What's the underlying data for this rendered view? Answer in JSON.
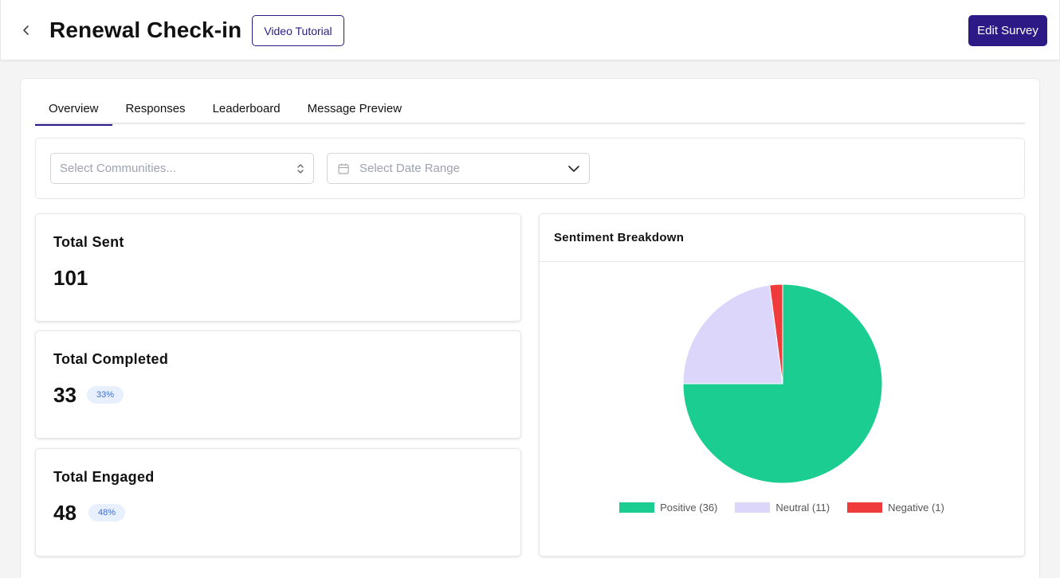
{
  "header": {
    "title": "Renewal Check-in",
    "video_tutorial_label": "Video Tutorial",
    "edit_survey_label": "Edit Survey"
  },
  "tabs": [
    {
      "label": "Overview",
      "active": true
    },
    {
      "label": "Responses",
      "active": false
    },
    {
      "label": "Leaderboard",
      "active": false
    },
    {
      "label": "Message Preview",
      "active": false
    }
  ],
  "filters": {
    "communities_placeholder": "Select Communities...",
    "date_range_placeholder": "Select Date Range"
  },
  "stats": {
    "total_sent": {
      "label": "Total Sent",
      "value": "101"
    },
    "total_completed": {
      "label": "Total Completed",
      "value": "33",
      "percent": "33%"
    },
    "total_engaged": {
      "label": "Total Engaged",
      "value": "48",
      "percent": "48%"
    }
  },
  "colors": {
    "accent": "#2e1a87",
    "positive": "#1ccd91",
    "neutral": "#dcd6fb",
    "negative": "#ef3b3b"
  },
  "chart_data": {
    "type": "pie",
    "title": "Sentiment Breakdown",
    "categories": [
      "Positive",
      "Neutral",
      "Negative"
    ],
    "values": [
      36,
      11,
      1
    ],
    "legend_labels": [
      "Positive (36)",
      "Neutral (11)",
      "Negative (1)"
    ],
    "colors": [
      "#1ccd91",
      "#dcd6fb",
      "#ef3b3b"
    ],
    "legend_position": "bottom"
  }
}
